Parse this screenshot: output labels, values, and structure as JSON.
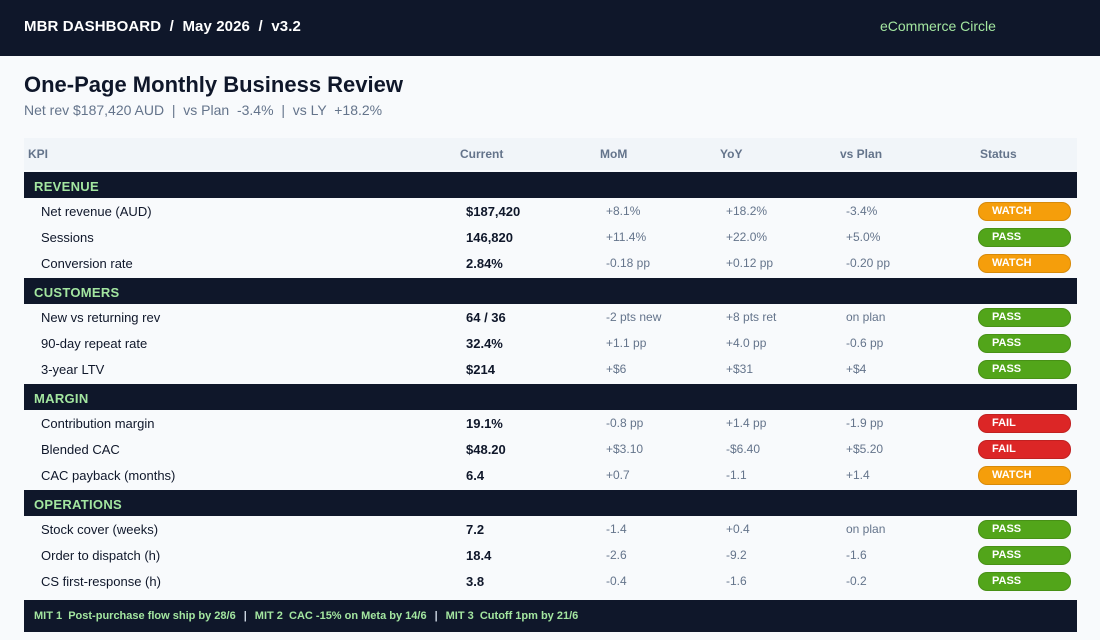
{
  "header": {
    "breadcrumb": "MBR DASHBOARD  /  May 2026  /  v3.2",
    "brand": "eCommerce Circle"
  },
  "page": {
    "title": "One-Page Monthly Business Review",
    "subtitle": "Net rev $187,420 AUD  |  vs Plan  -3.4%  |  vs LY  +18.2%"
  },
  "table": {
    "columns": [
      "KPI",
      "Current",
      "MoM",
      "YoY",
      "vs Plan",
      "Status"
    ],
    "sections": [
      {
        "name": "REVENUE",
        "rows": [
          {
            "kpi": "Net revenue (AUD)",
            "current": "$187,420",
            "mom": "+8.1%",
            "yoy": "+18.2%",
            "plan": "-3.4%",
            "status": "WATCH"
          },
          {
            "kpi": "Sessions",
            "current": "146,820",
            "mom": "+11.4%",
            "yoy": "+22.0%",
            "plan": "+5.0%",
            "status": "PASS"
          },
          {
            "kpi": "Conversion rate",
            "current": "2.84%",
            "mom": "-0.18 pp",
            "yoy": "+0.12 pp",
            "plan": "-0.20 pp",
            "status": "WATCH"
          }
        ]
      },
      {
        "name": "CUSTOMERS",
        "rows": [
          {
            "kpi": "New vs returning rev",
            "current": "64 / 36",
            "mom": "-2 pts new",
            "yoy": "+8 pts ret",
            "plan": "on plan",
            "status": "PASS"
          },
          {
            "kpi": "90-day repeat rate",
            "current": "32.4%",
            "mom": "+1.1 pp",
            "yoy": "+4.0 pp",
            "plan": "-0.6 pp",
            "status": "PASS"
          },
          {
            "kpi": "3-year LTV",
            "current": "$214",
            "mom": "+$6",
            "yoy": "+$31",
            "plan": "+$4",
            "status": "PASS"
          }
        ]
      },
      {
        "name": "MARGIN",
        "rows": [
          {
            "kpi": "Contribution margin",
            "current": "19.1%",
            "mom": "-0.8 pp",
            "yoy": "+1.4 pp",
            "plan": "-1.9 pp",
            "status": "FAIL"
          },
          {
            "kpi": "Blended CAC",
            "current": "$48.20",
            "mom": "+$3.10",
            "yoy": "-$6.40",
            "plan": "+$5.20",
            "status": "FAIL"
          },
          {
            "kpi": "CAC payback (months)",
            "current": "6.4",
            "mom": "+0.7",
            "yoy": "-1.1",
            "plan": "+1.4",
            "status": "WATCH"
          }
        ]
      },
      {
        "name": "OPERATIONS",
        "rows": [
          {
            "kpi": "Stock cover (weeks)",
            "current": "7.2",
            "mom": "-1.4",
            "yoy": "+0.4",
            "plan": "on plan",
            "status": "PASS"
          },
          {
            "kpi": "Order to dispatch (h)",
            "current": "18.4",
            "mom": "-2.6",
            "yoy": "-9.2",
            "plan": "-1.6",
            "status": "PASS"
          },
          {
            "kpi": "CS first-response (h)",
            "current": "3.8",
            "mom": "-0.4",
            "yoy": "-1.6",
            "plan": "-0.2",
            "status": "PASS"
          }
        ]
      }
    ]
  },
  "footer": {
    "mits": [
      "MIT 1  Post-purchase flow ship by 28/6",
      "MIT 2  CAC -15% on Meta by 14/6",
      "MIT 3  Cutoff 1pm by 21/6"
    ],
    "separator": "|"
  },
  "colors": {
    "navy": "#0f172a",
    "accent_green": "#a3e6a0",
    "watch": "#f59e0b",
    "pass": "#52a51a",
    "fail": "#dc2626"
  }
}
